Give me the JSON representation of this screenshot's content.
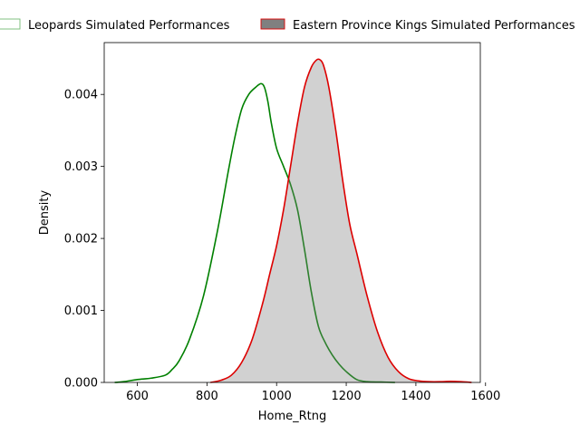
{
  "chart_data": {
    "type": "area",
    "xlabel": "Home_Rtng",
    "ylabel": "Density",
    "xlim": [
      505,
      1585
    ],
    "ylim": [
      0,
      0.00472
    ],
    "xticks": [
      600,
      800,
      1000,
      1200,
      1400,
      1600
    ],
    "yticks": [
      0.0,
      0.001,
      0.002,
      0.003,
      0.004
    ],
    "ytick_labels": [
      "0.000",
      "0.001",
      "0.002",
      "0.003",
      "0.004"
    ],
    "legend_position": "top (above plot, horizontal)",
    "grid": false,
    "series": [
      {
        "name": "Leopards Simulated Performances",
        "color": "#008000",
        "fill": "none",
        "x": [
          535,
          560,
          600,
          640,
          680,
          700,
          720,
          750,
          790,
          830,
          860,
          880,
          900,
          920,
          940,
          955,
          965,
          975,
          985,
          1000,
          1020,
          1040,
          1060,
          1080,
          1100,
          1120,
          1140,
          1160,
          1180,
          1200,
          1230,
          1260,
          1300,
          1340
        ],
        "y": [
          0.0,
          1e-05,
          4e-05,
          6e-05,
          0.0001,
          0.00018,
          0.0003,
          0.0006,
          0.0012,
          0.0021,
          0.0029,
          0.0034,
          0.0038,
          0.004,
          0.0041,
          0.00415,
          0.0041,
          0.0039,
          0.0036,
          0.00325,
          0.003,
          0.00275,
          0.0024,
          0.00185,
          0.00125,
          0.00078,
          0.00055,
          0.00038,
          0.00025,
          0.00015,
          4e-05,
          1e-05,
          5e-06,
          0.0
        ]
      },
      {
        "name": "Eastern Province Kings Simulated Performances",
        "color": "#dd0000",
        "fill": "#808080",
        "x": [
          810,
          840,
          870,
          900,
          930,
          960,
          980,
          1000,
          1020,
          1040,
          1060,
          1080,
          1100,
          1115,
          1125,
          1135,
          1150,
          1170,
          1190,
          1210,
          1230,
          1260,
          1290,
          1320,
          1350,
          1380,
          1410,
          1440,
          1470,
          1500,
          1530,
          1560
        ],
        "y": [
          0.0,
          3e-05,
          0.0001,
          0.00028,
          0.0006,
          0.0011,
          0.0015,
          0.0019,
          0.0024,
          0.003,
          0.0036,
          0.0041,
          0.00438,
          0.00448,
          0.00448,
          0.0044,
          0.0041,
          0.0035,
          0.0028,
          0.0022,
          0.0018,
          0.0012,
          0.0007,
          0.00035,
          0.00015,
          5e-05,
          2e-05,
          1e-05,
          1e-05,
          1.5e-05,
          1e-05,
          0.0
        ]
      }
    ]
  }
}
